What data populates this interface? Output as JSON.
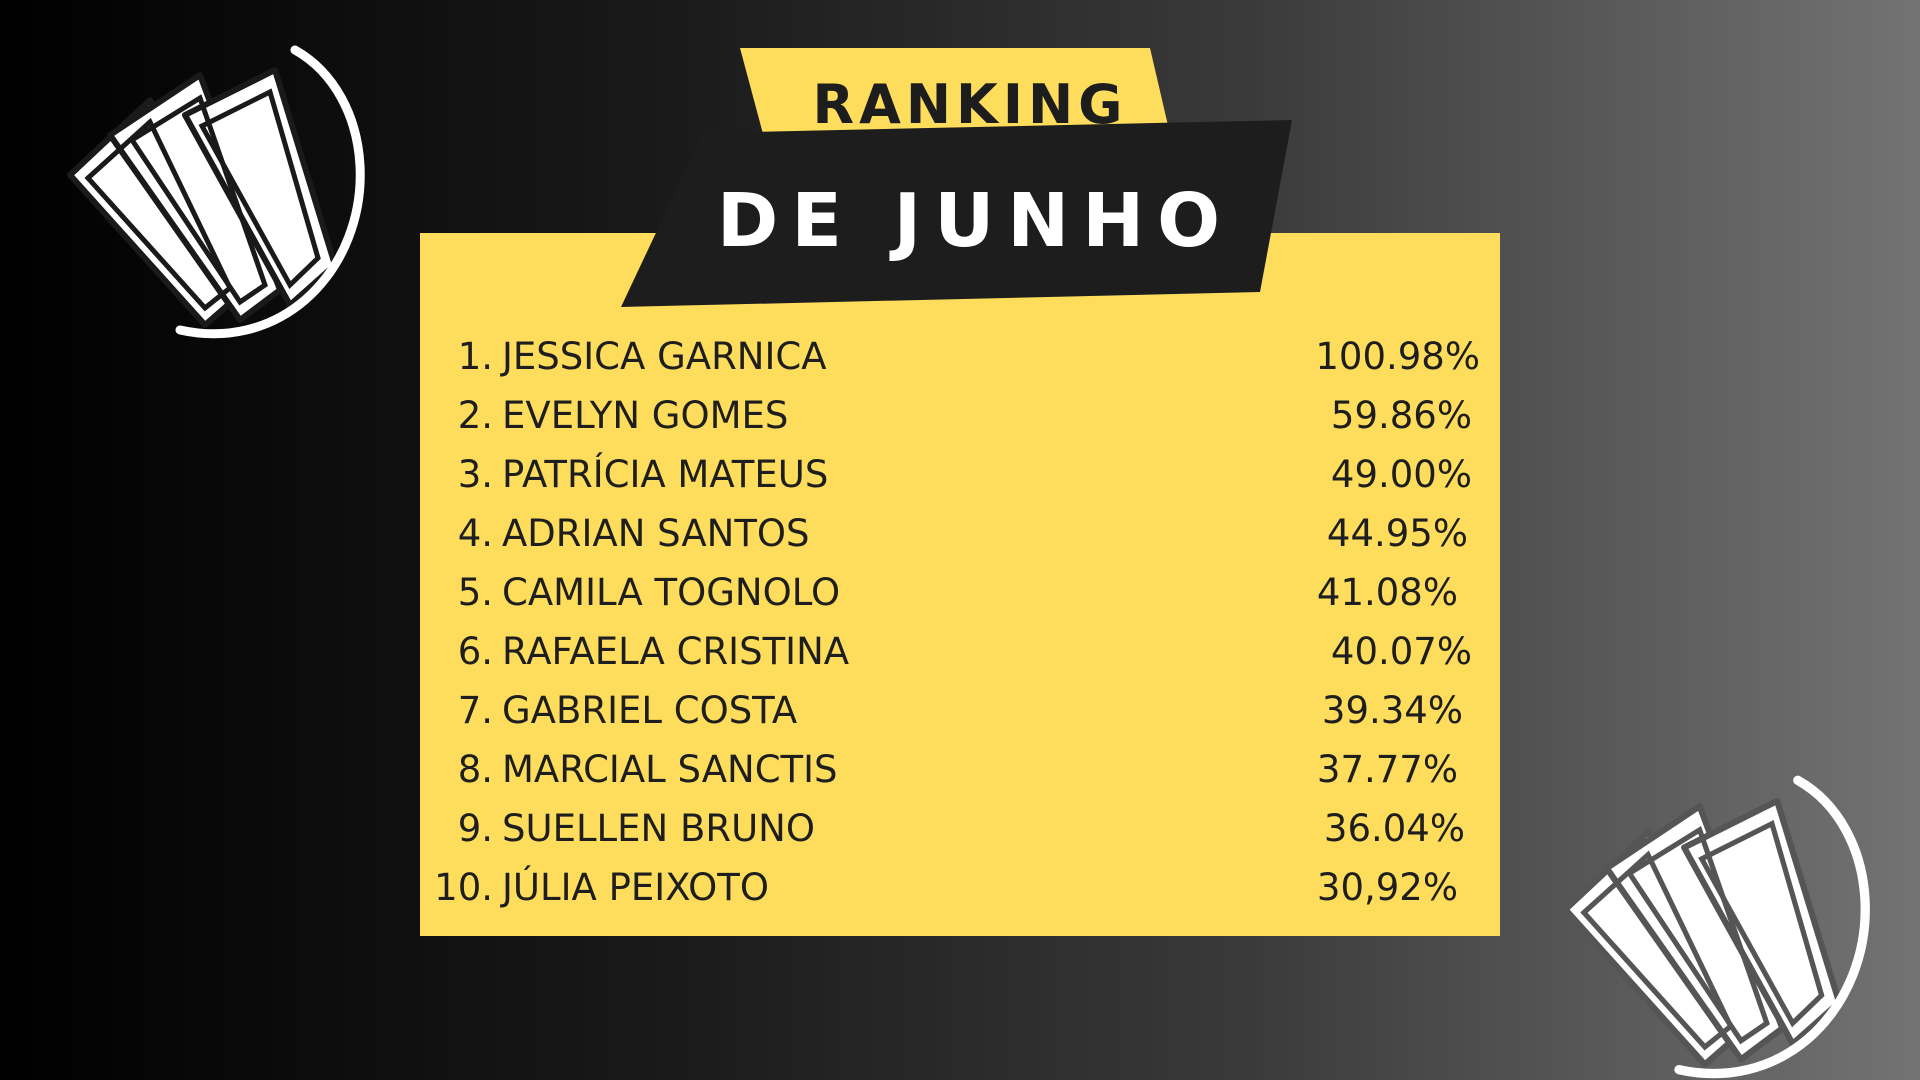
{
  "header": {
    "line1": "RANKING",
    "line2": "DE JUNHO"
  },
  "ranking": [
    {
      "rank": "1.",
      "name": "JESSICA GARNICA",
      "value": "100.98%"
    },
    {
      "rank": "2.",
      "name": "EVELYN GOMES",
      "value": "59.86%"
    },
    {
      "rank": "3.",
      "name": "PATRÍCIA MATEUS",
      "value": "49.00%"
    },
    {
      "rank": "4.",
      "name": "ADRIAN SANTOS",
      "value": "44.95%"
    },
    {
      "rank": "5.",
      "name": "CAMILA TOGNOLO",
      "value": "41.08%"
    },
    {
      "rank": "6.",
      "name": "RAFAELA CRISTINA",
      "value": "40.07%"
    },
    {
      "rank": "7.",
      "name": "GABRIEL COSTA",
      "value": "39.34%"
    },
    {
      "rank": "8.",
      "name": "MARCIAL SANCTIS",
      "value": "37.77%"
    },
    {
      "rank": "9.",
      "name": "SUELLEN BRUNO",
      "value": "36.04%"
    },
    {
      "rank": "10.",
      "name": "JÚLIA PEIXOTO",
      "value": "30,92%"
    }
  ],
  "decor": {
    "logo_icon": "money-bills-icon",
    "accent_color": "#fedd5c",
    "banner_color": "#1d1d1d"
  }
}
